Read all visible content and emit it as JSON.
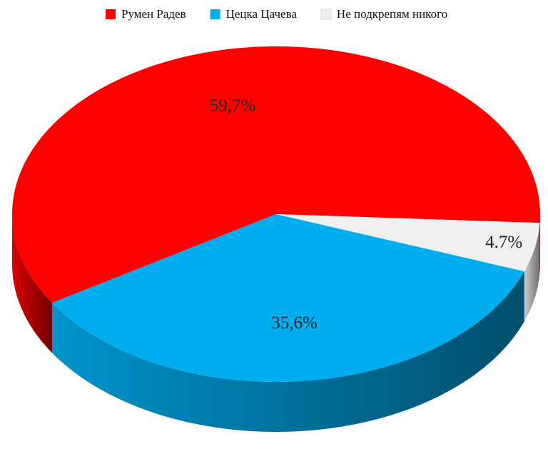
{
  "chart_data": {
    "type": "pie3d",
    "categories": [
      "Румен Радев",
      "Цецка Цачева",
      "Не подкрепям никого"
    ],
    "values": [
      59.7,
      35.6,
      4.7
    ],
    "value_labels": [
      "59,7%",
      "35,6%",
      "4.7%"
    ],
    "colors": [
      "#ff0000",
      "#00aeef",
      "#f0f0f0"
    ],
    "legend": "top"
  }
}
